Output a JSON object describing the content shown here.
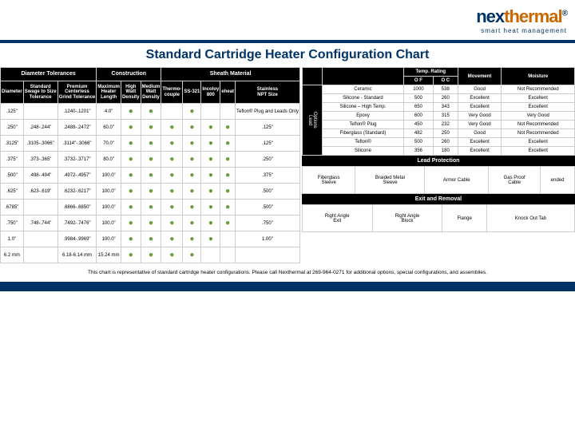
{
  "logo": {
    "p1": "nex",
    "p2": "thermal",
    "reg": "®",
    "sub": "smart heat management"
  },
  "title": "Standard Cartridge Heater Configuration Chart",
  "grp": {
    "diam": "Diameter Tolerances",
    "constr": "Construction",
    "sheath": "Sheath Material",
    "temp": "Temp. Rating"
  },
  "sub": {
    "diameter": "Diameter",
    "std": "Standard\nSwage to Size\nTolerance",
    "prem": "Premium\nCenterless\nGrind Tolerance",
    "maxlen": "Maximum\nHeater\nLength",
    "high": "High\nWatt\nDensity",
    "med": "Medium\nWatt\nDensity",
    "thermo": "Thermo-\ncouple",
    "ss321": "SS-321",
    "inc": "Incoloy\n800",
    "eheat": "eheat",
    "snpt": "Stainless\nNPT Size",
    "of": "O F",
    "oc": "O C",
    "move": "Movement",
    "moist": "Moisture"
  },
  "rows": [
    {
      "d": ".125\"",
      "std": "",
      "prem": ".1240-.1201\"",
      "ml": "4.0\"",
      "hi": "g",
      "md": "g",
      "tc": "",
      "ss": "g",
      "in": "",
      "eh": "",
      "npt": "Teflon® Plug and Leads Only"
    },
    {
      "d": ".250\"",
      "std": ".248-.244\"",
      "prem": ".2488-.2472\"",
      "ml": "60.0\"",
      "hi": "g",
      "md": "g",
      "tc": "g",
      "ss": "g",
      "in": "g",
      "eh": "g",
      "npt": ".125\""
    },
    {
      "d": ".3125\"",
      "std": ".3105-.3066\"",
      "prem": ".3114\"-.3066\"",
      "ml": "70.0\"",
      "hi": "g",
      "md": "g",
      "tc": "g",
      "ss": "g",
      "in": "g",
      "eh": "g",
      "npt": ".125\""
    },
    {
      "d": ".375\"",
      "std": ".373-.365\"",
      "prem": ".3732-.3717\"",
      "ml": "80.0\"",
      "hi": "g",
      "md": "g",
      "tc": "g",
      "ss": "g",
      "in": "g",
      "eh": "g",
      "npt": ".250\""
    },
    {
      "d": ".500\"",
      "std": ".498-.494\"",
      "prem": ".4972-.4957\"",
      "ml": "100.0\"",
      "hi": "g",
      "md": "g",
      "tc": "g",
      "ss": "g",
      "in": "g",
      "eh": "g",
      "npt": ".375\""
    },
    {
      "d": ".625\"",
      "std": ".623-.619\"",
      "prem": ".6232-.6217\"",
      "ml": "100.0\"",
      "hi": "g",
      "md": "g",
      "tc": "g",
      "ss": "g",
      "in": "g",
      "eh": "g",
      "npt": ".500\""
    },
    {
      "d": ".6785\"",
      "std": "",
      "prem": ".6866-.6850\"",
      "ml": "100.0\"",
      "hi": "g",
      "md": "g",
      "tc": "g",
      "ss": "g",
      "in": "g",
      "eh": "g",
      "npt": ".500\""
    },
    {
      "d": ".750\"",
      "std": ".748-.744\"",
      "prem": ".7492-.7476\"",
      "ml": "100.0\"",
      "hi": "g",
      "md": "g",
      "tc": "g",
      "ss": "g",
      "in": "g",
      "eh": "g",
      "npt": ".750\""
    },
    {
      "d": "1.0\"",
      "std": "",
      "prem": ".9984-.9969\"",
      "ml": "100.0\"",
      "hi": "g",
      "md": "g",
      "tc": "g",
      "ss": "g",
      "in": "g",
      "eh": "",
      "npt": "1.00\""
    },
    {
      "d": "6.2 mm",
      "std": "",
      "prem": "6.18-6.14 mm",
      "ml": "15.24 mm",
      "hi": "g",
      "md": "g",
      "tc": "g",
      "ss": "g",
      "in": "",
      "eh": "",
      "npt": ""
    }
  ],
  "leadopt_label": "Lead\nOptions",
  "leadopts": [
    {
      "n": "Ceramic",
      "f": "1000",
      "c": "538",
      "m": "Good",
      "ms": "Not Recommended"
    },
    {
      "n": "Silicone - Standard",
      "f": "500",
      "c": "260",
      "m": "Excellent",
      "ms": "Excellent"
    },
    {
      "n": "Silicone – High Temp.",
      "f": "650",
      "c": "343",
      "m": "Excellent",
      "ms": "Excellent"
    },
    {
      "n": "Epoxy",
      "f": "600",
      "c": "315",
      "m": "Very Good",
      "ms": "Very Good"
    },
    {
      "n": "Teflon® Plug",
      "f": "450",
      "c": "232",
      "m": "Very Good",
      "ms": "Not Recommended"
    },
    {
      "n": "Fiberglass (Standard)",
      "f": "482",
      "c": "250",
      "m": "Good",
      "ms": "Not Recommended"
    },
    {
      "n": "Teflon®",
      "f": "500",
      "c": "260",
      "m": "Excellent",
      "ms": "Excellent"
    },
    {
      "n": "Silicone",
      "f": "356",
      "c": "180",
      "m": "Excellent",
      "ms": "Excellent"
    }
  ],
  "sec": {
    "lp": "Lead Protection",
    "er": "Exit and Removal"
  },
  "lp": {
    "a": "Fiberglass\nSleeve",
    "b": "Braided Metal\nSleeve",
    "c": "Armor Cable",
    "d": "Gas Proof\nCable",
    "e": "ended"
  },
  "er": {
    "a": "Right Angle\nExit",
    "b": "Right Angle\nBlock",
    "c": "Flange",
    "d": "Knock Out Tab"
  },
  "footer": "This chart is representative of standard cartridge heater configurations. Please call Nexthermal at 269-964-0271 for additional options, special configurations, and assemblies."
}
